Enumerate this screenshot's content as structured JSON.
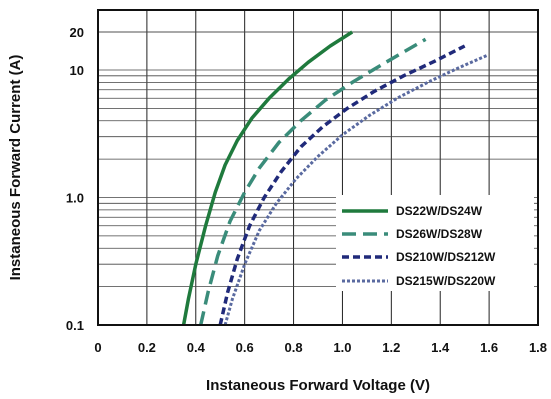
{
  "chart_data": {
    "type": "line",
    "xlabel": "Instaneous Forward Voltage (V)",
    "ylabel": "Instaneous Forward Current  (A)",
    "xlim": [
      0,
      1.8
    ],
    "ylim": [
      0.1,
      20
    ],
    "yscale": "log",
    "x_ticks": [
      "0",
      "0.2",
      "0.4",
      "0.6",
      "0.8",
      "1.0",
      "1.2",
      "1.4",
      "1.6",
      "1.8"
    ],
    "y_ticks": [
      "0.1",
      "1.0",
      "10",
      "20"
    ],
    "grid": true,
    "legend_position": "bottom-right",
    "series": [
      {
        "name": "DS22W/DS24W",
        "color": "#1f7a3d",
        "dash": "solid",
        "x": [
          0.35,
          0.37,
          0.4,
          0.44,
          0.48,
          0.52,
          0.57,
          0.63,
          0.7,
          0.78,
          0.86,
          0.95,
          1.04
        ],
        "y": [
          0.1,
          0.16,
          0.3,
          0.6,
          1.1,
          1.8,
          2.8,
          4.2,
          6.0,
          8.5,
          11.5,
          15.5,
          20
        ]
      },
      {
        "name": "DS26W/DS28W",
        "color": "#3a8c7a",
        "dash": "long-dash",
        "x": [
          0.42,
          0.45,
          0.49,
          0.54,
          0.6,
          0.66,
          0.74,
          0.83,
          0.93,
          1.04,
          1.16,
          1.34
        ],
        "y": [
          0.1,
          0.18,
          0.35,
          0.65,
          1.1,
          1.7,
          2.7,
          4.0,
          5.8,
          8.0,
          11.0,
          17.5
        ]
      },
      {
        "name": "DS210W/DS212W",
        "color": "#202a7a",
        "dash": "short-dash",
        "x": [
          0.5,
          0.53,
          0.57,
          0.62,
          0.68,
          0.75,
          0.83,
          0.92,
          1.02,
          1.13,
          1.25,
          1.38,
          1.5
        ],
        "y": [
          0.1,
          0.18,
          0.33,
          0.6,
          1.0,
          1.6,
          2.5,
          3.6,
          5.0,
          6.8,
          9.0,
          11.8,
          15.5
        ]
      },
      {
        "name": "DS215W/DS220W",
        "color": "#5a6aa0",
        "dash": "dotted",
        "x": [
          0.52,
          0.55,
          0.6,
          0.66,
          0.73,
          0.81,
          0.9,
          1.0,
          1.11,
          1.23,
          1.36,
          1.48,
          1.59
        ],
        "y": [
          0.1,
          0.16,
          0.3,
          0.55,
          0.9,
          1.4,
          2.1,
          3.1,
          4.4,
          6.1,
          8.2,
          10.5,
          13.0
        ]
      }
    ]
  }
}
